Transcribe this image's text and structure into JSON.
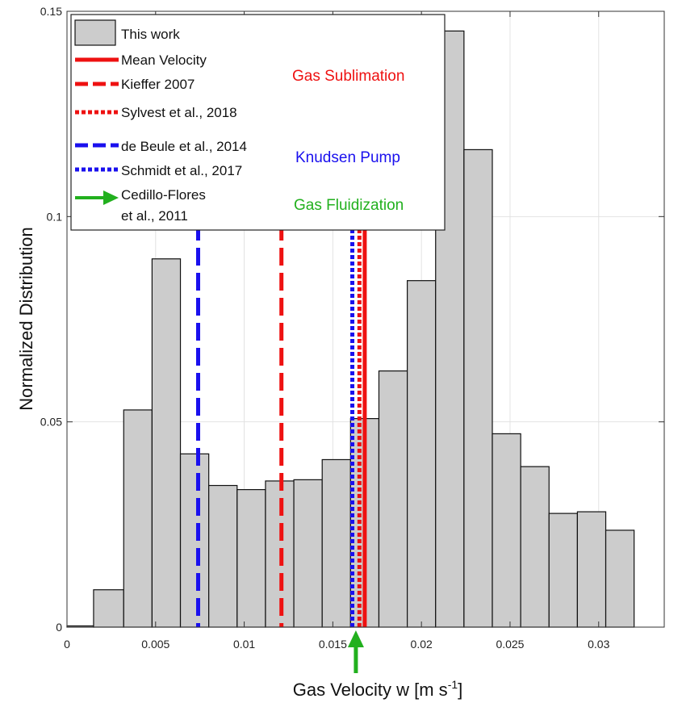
{
  "chart_data": {
    "type": "bar",
    "xlabel": "Gas Velocity w [m s",
    "xlabel_sup": "-1",
    "xlabel_end": "]",
    "ylabel": "Normalized Distribution",
    "xlim": [
      0,
      0.0337
    ],
    "ylim": [
      0,
      0.15
    ],
    "grid": true,
    "xticks": [
      0,
      0.005,
      0.01,
      0.015,
      0.02,
      0.025,
      0.03
    ],
    "xtick_labels": [
      "0",
      "0.005",
      "0.01",
      "0.015",
      "0.02",
      "0.025",
      "0.03"
    ],
    "yticks": [
      0,
      0.05,
      0.1,
      0.15
    ],
    "ytick_labels": [
      "0",
      "0.05",
      "0.1",
      "0.15"
    ],
    "histogram": {
      "name": "This work",
      "bin_edges": [
        0,
        0.0015,
        0.0032,
        0.0048,
        0.0064,
        0.008,
        0.0096,
        0.0112,
        0.0128,
        0.0144,
        0.016,
        0.0176,
        0.0192,
        0.0208,
        0.0224,
        0.024,
        0.0256,
        0.0272,
        0.0288,
        0.0304,
        0.032
      ],
      "values": [
        0.0003,
        0.0091,
        0.0529,
        0.0897,
        0.0422,
        0.0345,
        0.0335,
        0.0356,
        0.0359,
        0.0408,
        0.0508,
        0.0624,
        0.0844,
        0.1452,
        0.1163,
        0.0471,
        0.0391,
        0.0277,
        0.0281,
        0.0236
      ],
      "color": "#cccccc"
    },
    "vlines": [
      {
        "name": "Mean Velocity",
        "x": 0.0168,
        "style": "solid",
        "color": "#ee1111"
      },
      {
        "name": "Kieffer 2007",
        "x": 0.0121,
        "style": "dashed",
        "color": "#ee1111"
      },
      {
        "name": "Sylvest et al., 2018",
        "x": 0.0165,
        "style": "dotted",
        "color": "#ee1111"
      },
      {
        "name": "de Beule et al., 2014",
        "x": 0.0074,
        "style": "dashed",
        "color": "#1a10ee"
      },
      {
        "name": "Schmidt et al., 2017",
        "x": 0.0161,
        "style": "dotted",
        "color": "#1a10ee"
      }
    ],
    "arrow": {
      "name": "Cedillo-Flores et al., 2011",
      "x": 0.0163,
      "color": "#22b01e"
    },
    "legend": {
      "position": "top-left",
      "entries": [
        {
          "label": "This work"
        },
        {
          "label": "Mean Velocity"
        },
        {
          "label": "Kieffer 2007"
        },
        {
          "label": "Sylvest et al., 2018"
        },
        {
          "label": "de Beule et al., 2014"
        },
        {
          "label": "Schmidt et al., 2017"
        },
        {
          "label_line1": "Cedillo-Flores",
          "label_line2": "et al., 2011"
        }
      ]
    },
    "annotations": [
      {
        "text": "Gas Sublimation",
        "color": "#ee1111"
      },
      {
        "text": "Knudsen Pump",
        "color": "#1a10ee"
      },
      {
        "text": "Gas Fluidization",
        "color": "#22b01e"
      }
    ]
  }
}
